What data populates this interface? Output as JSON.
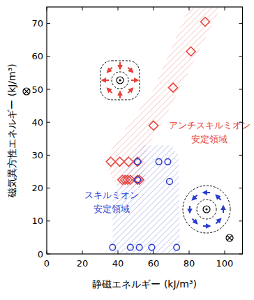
{
  "chart_data": {
    "type": "scatter",
    "x_label": "静磁エネルギー (kJ/m³)",
    "y_label": "磁気異方性エネルギー (kJ/m³)",
    "xlim": [
      0,
      110
    ],
    "ylim": [
      0,
      75
    ],
    "xticks": [
      0,
      20,
      40,
      60,
      80,
      100
    ],
    "yticks": [
      0,
      10,
      20,
      30,
      40,
      50,
      60,
      70
    ],
    "grid": false,
    "series": [
      {
        "name": "アンチスキルミオン",
        "region_label": "安定領域",
        "color": "#e8403a",
        "marker": "diamond",
        "x": [
          89,
          81,
          71,
          60,
          36,
          41,
          46,
          51,
          42.5,
          44,
          45.5,
          47,
          51,
          52
        ],
        "values": [
          70.5,
          61.5,
          50.5,
          39,
          28,
          28,
          28,
          28,
          22.5,
          22.5,
          22.5,
          22.5,
          22.5,
          22.5
        ],
        "region": {
          "x": [
            40,
            55,
            56,
            70,
            98,
            80,
            60,
            33,
            35
          ],
          "y": [
            20,
            20,
            32,
            45,
            75,
            75,
            50,
            29,
            25
          ]
        }
      },
      {
        "name": "スキルミオン",
        "region_label": "安定領域",
        "color": "#2b3ccf",
        "marker": "circle",
        "x": [
          51,
          63,
          68,
          69,
          51,
          37,
          47,
          52,
          59,
          73
        ],
        "values": [
          28,
          28,
          28,
          22,
          22.5,
          2,
          2,
          2,
          2,
          2
        ],
        "region": {
          "x": [
            37,
            75,
            74,
            70,
            52,
            37
          ],
          "y": [
            0,
            0,
            30,
            33,
            33,
            18
          ]
        }
      }
    ]
  }
}
